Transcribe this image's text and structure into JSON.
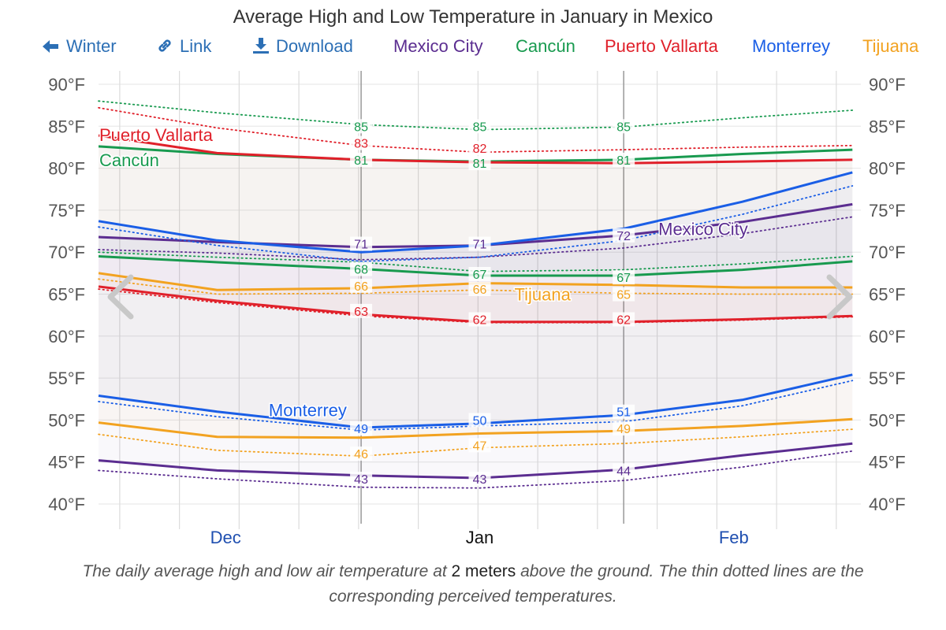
{
  "title": "Average High and Low Temperature in January in Mexico",
  "toolbar": {
    "back_label": "Winter",
    "link_label": "Link",
    "download_label": "Download",
    "link_color": "#2c6fb5"
  },
  "legend": [
    {
      "name": "Mexico City",
      "color": "#5b2d90"
    },
    {
      "name": "Cancún",
      "color": "#189a4f"
    },
    {
      "name": "Puerto Vallarta",
      "color": "#e0202a"
    },
    {
      "name": "Monterrey",
      "color": "#1a5ee6"
    },
    {
      "name": "Tijuana",
      "color": "#f2a220"
    }
  ],
  "caption": {
    "before": "The daily average high and low air temperature at ",
    "bold": "2 meters",
    "after": " above the ground. The thin dotted lines are the corresponding perceived temperatures."
  },
  "chart_data": {
    "type": "line",
    "title": "Average High and Low Temperature in January in Mexico",
    "x_unit": "date",
    "xlim": [
      "Dec 1",
      "Mar 1"
    ],
    "x": [
      "Dec 1",
      "Dec 15",
      "Jan 1",
      "Jan 15",
      "Feb 1",
      "Feb 15",
      "Feb 28"
    ],
    "x_tick_labels": [
      {
        "label": "Dec",
        "date": "Dec 16",
        "current": false
      },
      {
        "label": "Jan",
        "date": "Jan 15",
        "current": true
      },
      {
        "label": "Feb",
        "date": "Feb 14",
        "current": false
      }
    ],
    "month_boundaries": [
      "Jan 1",
      "Feb 1"
    ],
    "ylim": [
      38,
      92
    ],
    "y_ticks": [
      40,
      45,
      50,
      55,
      60,
      65,
      70,
      75,
      80,
      85,
      90
    ],
    "y_unit": "°F",
    "grid": true,
    "series": [
      {
        "name": "Mexico City",
        "color": "#5b2d90",
        "high": [
          71.8,
          71.2,
          70.6,
          70.8,
          72.0,
          73.6,
          75.7
        ],
        "low": [
          45.2,
          44.0,
          43.4,
          43.1,
          44.1,
          45.8,
          47.2
        ],
        "feels_high": [
          70.3,
          69.9,
          69.1,
          69.4,
          70.5,
          72.2,
          74.2
        ],
        "feels_low": [
          44.0,
          43.0,
          42.0,
          41.9,
          42.8,
          44.4,
          46.3
        ]
      },
      {
        "name": "Cancún",
        "color": "#189a4f",
        "high": [
          82.6,
          81.7,
          81.0,
          80.8,
          81.0,
          81.7,
          82.2
        ],
        "low": [
          69.5,
          68.8,
          68.0,
          67.2,
          67.2,
          67.9,
          68.9
        ],
        "feels_high": [
          88.0,
          86.6,
          85.2,
          84.6,
          84.9,
          86.0,
          86.9
        ],
        "feels_low": [
          70.0,
          69.4,
          68.8,
          67.7,
          67.9,
          68.6,
          69.5
        ]
      },
      {
        "name": "Puerto Vallarta",
        "color": "#e0202a",
        "high": [
          83.9,
          81.8,
          81.0,
          80.7,
          80.6,
          80.8,
          81.0
        ],
        "low": [
          65.9,
          64.2,
          62.6,
          61.7,
          61.7,
          62.0,
          62.4
        ],
        "feels_high": [
          87.2,
          84.8,
          82.7,
          81.9,
          82.2,
          82.5,
          82.7
        ],
        "feels_low": [
          65.6,
          64.0,
          62.4,
          61.6,
          61.6,
          61.9,
          62.3
        ]
      },
      {
        "name": "Monterrey",
        "color": "#1a5ee6",
        "high": [
          73.7,
          71.4,
          70.0,
          70.8,
          72.8,
          76.0,
          79.5
        ],
        "low": [
          52.9,
          51.0,
          49.1,
          49.6,
          50.6,
          52.4,
          55.4
        ],
        "feels_high": [
          73.0,
          70.8,
          68.9,
          69.4,
          71.4,
          74.5,
          77.9
        ],
        "feels_low": [
          52.2,
          50.4,
          48.8,
          49.3,
          49.8,
          51.7,
          54.7
        ]
      },
      {
        "name": "Tijuana",
        "color": "#f2a220",
        "high": [
          67.5,
          65.5,
          65.7,
          66.3,
          66.1,
          65.8,
          65.8
        ],
        "low": [
          49.7,
          48.0,
          47.9,
          48.4,
          48.7,
          49.3,
          50.1
        ],
        "feels_high": [
          66.8,
          65.0,
          65.1,
          65.5,
          65.1,
          65.0,
          65.0
        ],
        "feels_low": [
          48.3,
          46.4,
          45.7,
          46.7,
          47.2,
          48.0,
          48.9
        ]
      }
    ],
    "series_labels": [
      {
        "name": "Puerto Vallarta",
        "date": "Dec 1",
        "value": 84
      },
      {
        "name": "Cancún",
        "date": "Dec 1",
        "value": 81
      },
      {
        "name": "Monterrey",
        "date": "Dec 21",
        "value": 51.2
      },
      {
        "name": "Tijuana",
        "date": "Jan 19",
        "value": 65
      },
      {
        "name": "Mexico City",
        "date": "Feb 5",
        "value": 72.8
      }
    ],
    "data_labels": [
      {
        "date": "Jan 1",
        "series": "Cancún",
        "value": 85
      },
      {
        "date": "Jan 1",
        "series": "Puerto Vallarta",
        "value": 83
      },
      {
        "date": "Jan 1",
        "series": "Cancún",
        "value": 81
      },
      {
        "date": "Jan 1",
        "series": "Mexico City",
        "value": 71
      },
      {
        "date": "Jan 1",
        "series": "Cancún",
        "value": 68
      },
      {
        "date": "Jan 1",
        "series": "Tijuana",
        "value": 66
      },
      {
        "date": "Jan 1",
        "series": "Puerto Vallarta",
        "value": 63
      },
      {
        "date": "Jan 1",
        "series": "Monterrey",
        "value": 49
      },
      {
        "date": "Jan 1",
        "series": "Tijuana",
        "value": 46
      },
      {
        "date": "Jan 1",
        "series": "Mexico City",
        "value": 43
      },
      {
        "date": "Jan 15",
        "series": "Cancún",
        "value": 85
      },
      {
        "date": "Jan 15",
        "series": "Puerto Vallarta",
        "value": 82
      },
      {
        "date": "Jan 15",
        "series": "Cancún",
        "value": 81
      },
      {
        "date": "Jan 15",
        "series": "Mexico City",
        "value": 71
      },
      {
        "date": "Jan 15",
        "series": "Cancún",
        "value": 67
      },
      {
        "date": "Jan 15",
        "series": "Tijuana",
        "value": 66
      },
      {
        "date": "Jan 15",
        "series": "Puerto Vallarta",
        "value": 62
      },
      {
        "date": "Jan 15",
        "series": "Monterrey",
        "value": 50
      },
      {
        "date": "Jan 15",
        "series": "Tijuana",
        "value": 47
      },
      {
        "date": "Jan 15",
        "series": "Mexico City",
        "value": 43
      },
      {
        "date": "Feb 1",
        "series": "Cancún",
        "value": 85
      },
      {
        "date": "Feb 1",
        "series": "Cancún",
        "value": 81
      },
      {
        "date": "Feb 1",
        "series": "Mexico City",
        "value": 72
      },
      {
        "date": "Feb 1",
        "series": "Cancún",
        "value": 67
      },
      {
        "date": "Feb 1",
        "series": "Tijuana",
        "value": 65
      },
      {
        "date": "Feb 1",
        "series": "Puerto Vallarta",
        "value": 62
      },
      {
        "date": "Feb 1",
        "series": "Monterrey",
        "value": 51
      },
      {
        "date": "Feb 1",
        "series": "Tijuana",
        "value": 49
      },
      {
        "date": "Feb 1",
        "series": "Mexico City",
        "value": 44
      }
    ],
    "nav": {
      "prev_icon": "chevron-left-icon",
      "next_icon": "chevron-right-icon"
    }
  }
}
